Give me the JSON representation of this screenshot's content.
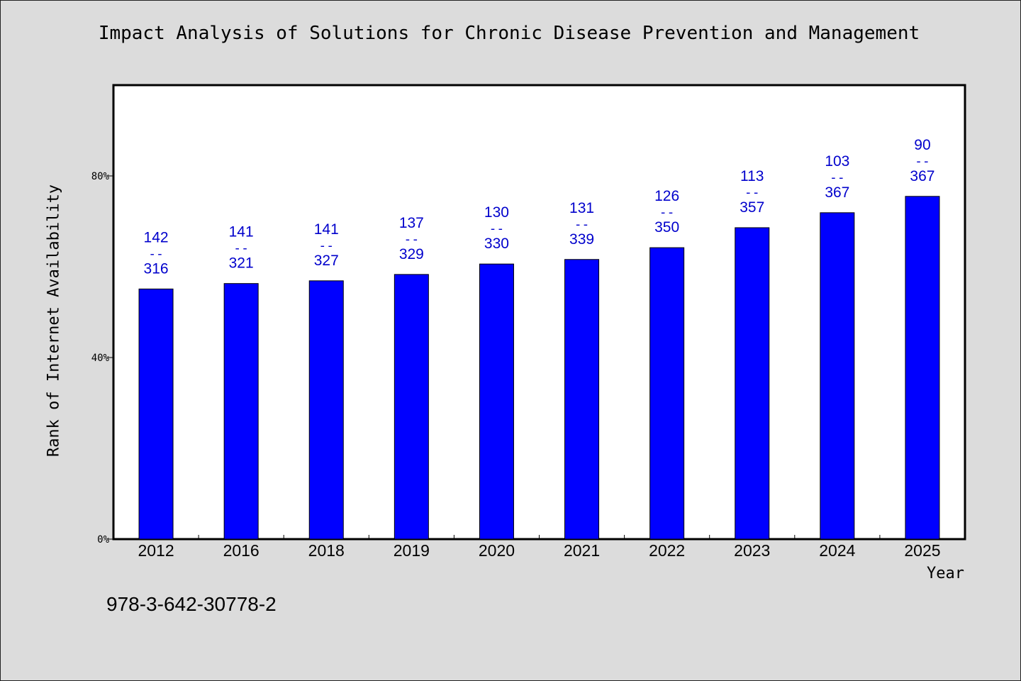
{
  "chart_data": {
    "type": "bar",
    "title": "Impact Analysis of Solutions for Chronic Disease Prevention and Management",
    "xlabel": "Year",
    "ylabel": "Rank of Internet Availability",
    "footnote": "978-3-642-30778-2",
    "categories": [
      "2012",
      "2016",
      "2018",
      "2019",
      "2020",
      "2021",
      "2022",
      "2023",
      "2024",
      "2025"
    ],
    "values": [
      55.1,
      56.3,
      56.9,
      58.3,
      60.6,
      61.6,
      64.2,
      68.6,
      71.9,
      75.5
    ],
    "labels": [
      {
        "top": "142",
        "mid": "--",
        "bottom": "316"
      },
      {
        "top": "141",
        "mid": "--",
        "bottom": "321"
      },
      {
        "top": "141",
        "mid": "--",
        "bottom": "327"
      },
      {
        "top": "137",
        "mid": "--",
        "bottom": "329"
      },
      {
        "top": "130",
        "mid": "--",
        "bottom": "330"
      },
      {
        "top": "131",
        "mid": "--",
        "bottom": "339"
      },
      {
        "top": "126",
        "mid": "--",
        "bottom": "350"
      },
      {
        "top": "113",
        "mid": "--",
        "bottom": "357"
      },
      {
        "top": "103",
        "mid": "--",
        "bottom": "367"
      },
      {
        "top": "90",
        "mid": "--",
        "bottom": "367"
      }
    ],
    "yticks": [
      0,
      40,
      80
    ],
    "ytick_labels": [
      "0%",
      "40%",
      "80%"
    ],
    "ylim": [
      0,
      100
    ],
    "grid": false,
    "colors": {
      "bar": "#0000ff",
      "bar_edge": "#000000",
      "label": "#0000cc",
      "plot_bg": "#ffffff",
      "page_bg": "#dcdcdc"
    }
  }
}
